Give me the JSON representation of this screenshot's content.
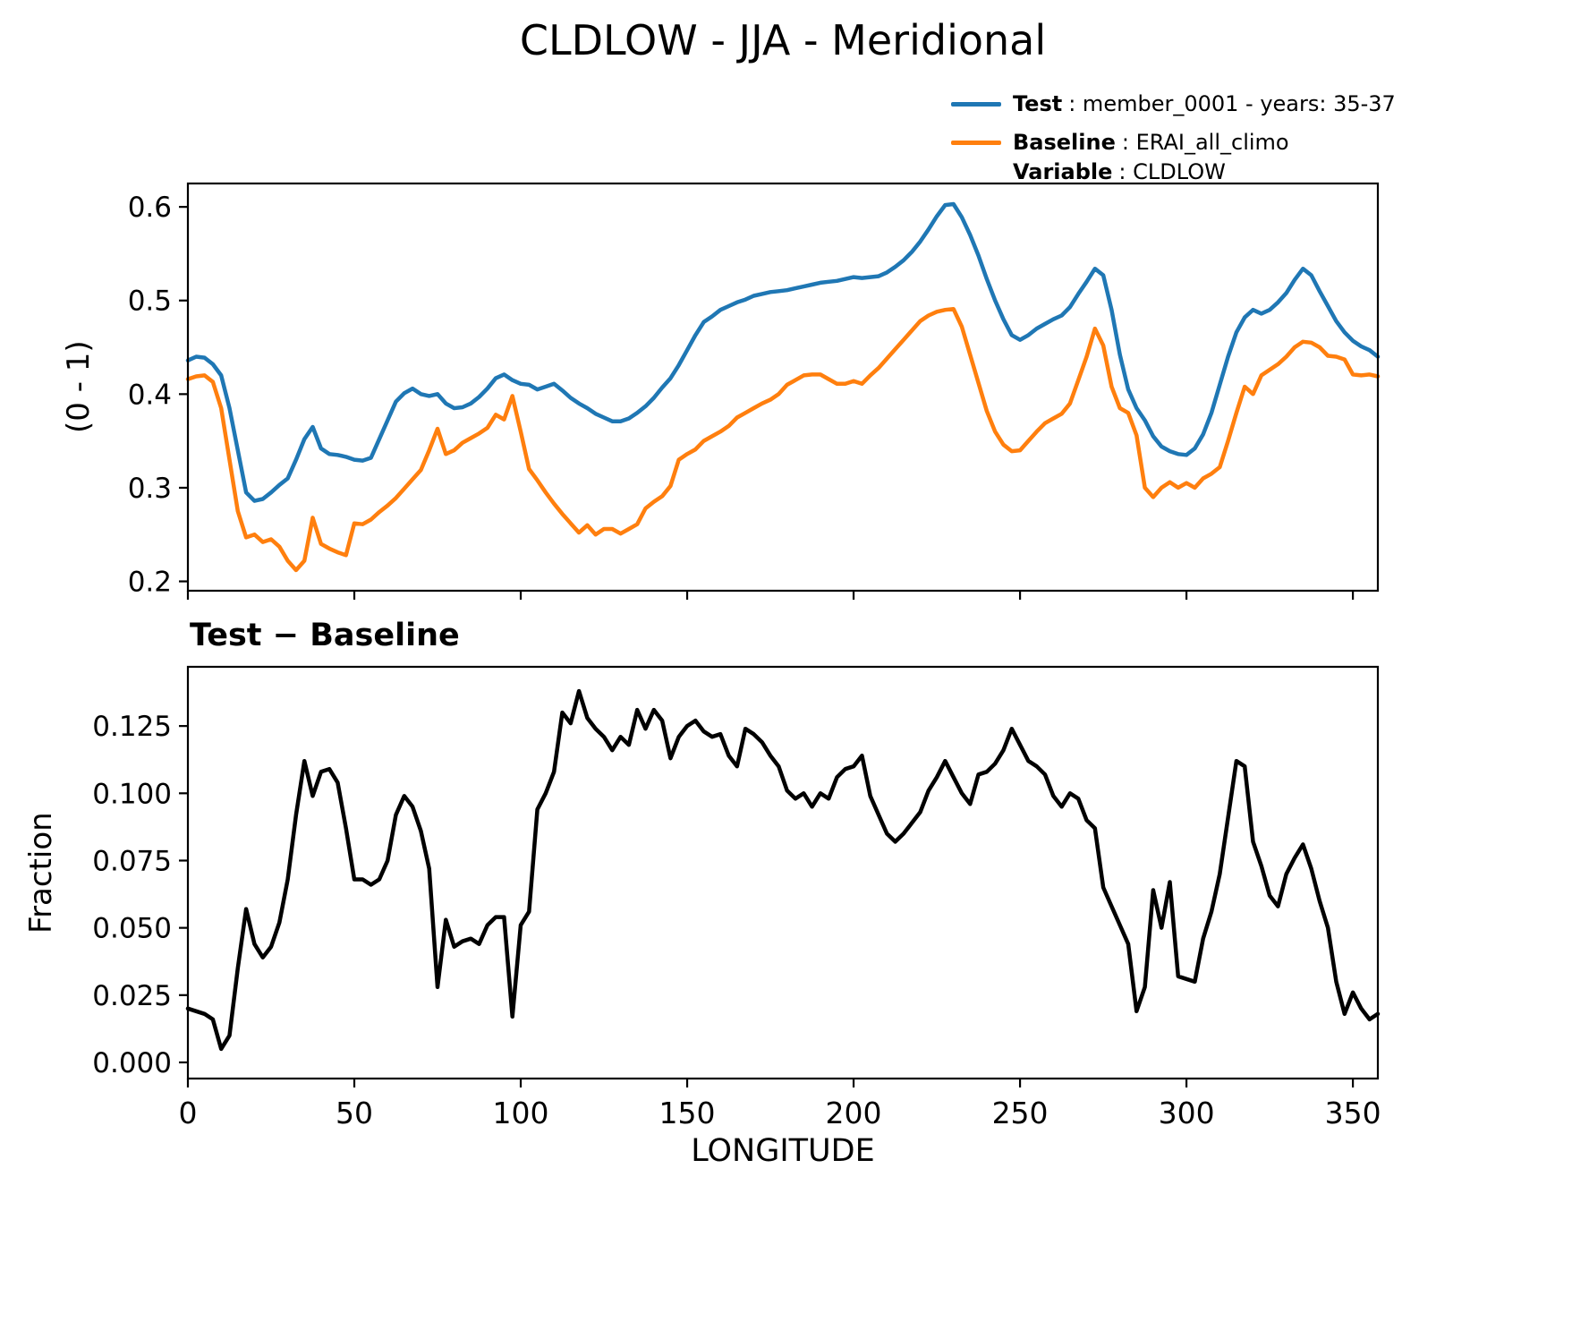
{
  "title": "CLDLOW - JJA - Meridional",
  "legend": {
    "test_label": "Test",
    "test_text": ": member_0001 - years: 35-37",
    "test_color": "#1f77b4",
    "baseline_label": "Baseline",
    "baseline_text": ": ERAI_all_climo",
    "baseline_color": "#ff7f0e",
    "variable_label": "Variable",
    "variable_text": ": CLDLOW"
  },
  "chart_data": [
    {
      "type": "line",
      "ylabel": "(0 - 1)",
      "xlim": [
        0,
        357.5
      ],
      "ylim": [
        0.19,
        0.625
      ],
      "yticks": [
        0.2,
        0.3,
        0.4,
        0.5,
        0.6
      ],
      "yticklabels": [
        "0.2",
        "0.3",
        "0.4",
        "0.5",
        "0.6"
      ],
      "xticks": [
        0,
        50,
        100,
        150,
        200,
        250,
        300,
        350
      ],
      "xticklabels": [
        "0",
        "50",
        "100",
        "150",
        "200",
        "250",
        "300",
        "350"
      ],
      "grid": false,
      "x": [
        0,
        2.5,
        5,
        7.5,
        10,
        12.5,
        15,
        17.5,
        20,
        22.5,
        25,
        27.5,
        30,
        32.5,
        35,
        37.5,
        40,
        42.5,
        45,
        47.5,
        50,
        52.5,
        55,
        57.5,
        60,
        62.5,
        65,
        67.5,
        70,
        72.5,
        75,
        77.5,
        80,
        82.5,
        85,
        87.5,
        90,
        92.5,
        95,
        97.5,
        100,
        102.5,
        105,
        107.5,
        110,
        112.5,
        115,
        117.5,
        120,
        122.5,
        125,
        127.5,
        130,
        132.5,
        135,
        137.5,
        140,
        142.5,
        145,
        147.5,
        150,
        152.5,
        155,
        157.5,
        160,
        162.5,
        165,
        167.5,
        170,
        172.5,
        175,
        177.5,
        180,
        182.5,
        185,
        187.5,
        190,
        192.5,
        195,
        197.5,
        200,
        202.5,
        205,
        207.5,
        210,
        212.5,
        215,
        217.5,
        220,
        222.5,
        225,
        227.5,
        230,
        232.5,
        235,
        237.5,
        240,
        242.5,
        245,
        247.5,
        250,
        252.5,
        255,
        257.5,
        260,
        262.5,
        265,
        267.5,
        270,
        272.5,
        275,
        277.5,
        280,
        282.5,
        285,
        287.5,
        290,
        292.5,
        295,
        297.5,
        300,
        302.5,
        305,
        307.5,
        310,
        312.5,
        315,
        317.5,
        320,
        322.5,
        325,
        327.5,
        330,
        332.5,
        335,
        337.5,
        340,
        342.5,
        345,
        347.5,
        350,
        352.5,
        355,
        357.5
      ],
      "series": [
        {
          "name": "Test",
          "color": "#1f77b4",
          "values": [
            0.436,
            0.44,
            0.439,
            0.432,
            0.42,
            0.385,
            0.34,
            0.295,
            0.286,
            0.288,
            0.295,
            0.303,
            0.31,
            0.33,
            0.352,
            0.365,
            0.342,
            0.336,
            0.335,
            0.333,
            0.33,
            0.329,
            0.332,
            0.352,
            0.372,
            0.392,
            0.401,
            0.406,
            0.4,
            0.398,
            0.4,
            0.39,
            0.385,
            0.386,
            0.39,
            0.397,
            0.406,
            0.417,
            0.421,
            0.415,
            0.411,
            0.41,
            0.405,
            0.408,
            0.411,
            0.404,
            0.396,
            0.39,
            0.385,
            0.379,
            0.375,
            0.371,
            0.371,
            0.374,
            0.38,
            0.387,
            0.396,
            0.407,
            0.417,
            0.431,
            0.447,
            0.463,
            0.477,
            0.483,
            0.49,
            0.494,
            0.498,
            0.501,
            0.505,
            0.507,
            0.509,
            0.51,
            0.511,
            0.513,
            0.515,
            0.517,
            0.519,
            0.52,
            0.521,
            0.523,
            0.525,
            0.524,
            0.525,
            0.526,
            0.53,
            0.536,
            0.543,
            0.552,
            0.563,
            0.576,
            0.59,
            0.602,
            0.603,
            0.589,
            0.57,
            0.548,
            0.523,
            0.5,
            0.48,
            0.463,
            0.458,
            0.463,
            0.47,
            0.475,
            0.48,
            0.484,
            0.493,
            0.507,
            0.52,
            0.534,
            0.527,
            0.49,
            0.442,
            0.405,
            0.385,
            0.372,
            0.355,
            0.344,
            0.339,
            0.336,
            0.335,
            0.342,
            0.357,
            0.38,
            0.41,
            0.44,
            0.466,
            0.482,
            0.49,
            0.486,
            0.49,
            0.498,
            0.508,
            0.522,
            0.534,
            0.527,
            0.51,
            0.494,
            0.478,
            0.466,
            0.457,
            0.451,
            0.447,
            0.44
          ]
        },
        {
          "name": "Baseline",
          "color": "#ff7f0e",
          "values": [
            0.416,
            0.419,
            0.42,
            0.413,
            0.385,
            0.33,
            0.275,
            0.247,
            0.25,
            0.242,
            0.245,
            0.237,
            0.222,
            0.212,
            0.222,
            0.268,
            0.24,
            0.235,
            0.231,
            0.228,
            0.262,
            0.261,
            0.266,
            0.274,
            0.281,
            0.289,
            0.299,
            0.309,
            0.319,
            0.34,
            0.363,
            0.336,
            0.34,
            0.348,
            0.353,
            0.358,
            0.364,
            0.378,
            0.373,
            0.398,
            0.36,
            0.32,
            0.308,
            0.295,
            0.283,
            0.272,
            0.262,
            0.252,
            0.26,
            0.25,
            0.256,
            0.256,
            0.251,
            0.256,
            0.261,
            0.278,
            0.285,
            0.291,
            0.302,
            0.33,
            0.336,
            0.341,
            0.35,
            0.355,
            0.36,
            0.366,
            0.375,
            0.38,
            0.385,
            0.39,
            0.394,
            0.4,
            0.41,
            0.415,
            0.42,
            0.421,
            0.421,
            0.416,
            0.411,
            0.411,
            0.414,
            0.411,
            0.42,
            0.428,
            0.438,
            0.448,
            0.458,
            0.468,
            0.478,
            0.484,
            0.488,
            0.49,
            0.491,
            0.472,
            0.442,
            0.412,
            0.382,
            0.36,
            0.346,
            0.339,
            0.34,
            0.35,
            0.36,
            0.369,
            0.374,
            0.379,
            0.39,
            0.415,
            0.44,
            0.47,
            0.452,
            0.408,
            0.385,
            0.38,
            0.356,
            0.3,
            0.29,
            0.3,
            0.306,
            0.3,
            0.305,
            0.3,
            0.31,
            0.315,
            0.322,
            0.35,
            0.38,
            0.408,
            0.4,
            0.42,
            0.426,
            0.432,
            0.44,
            0.45,
            0.456,
            0.455,
            0.45,
            0.441,
            0.44,
            0.437,
            0.421,
            0.42,
            0.421,
            0.419
          ]
        }
      ]
    },
    {
      "type": "line",
      "title": "Test − Baseline",
      "ylabel": "Fraction",
      "xlabel": "LONGITUDE",
      "xlim": [
        0,
        357.5
      ],
      "ylim": [
        -0.006,
        0.147
      ],
      "yticks": [
        0,
        0.025,
        0.05,
        0.075,
        0.1,
        0.125
      ],
      "yticklabels": [
        "0.000",
        "0.025",
        "0.050",
        "0.075",
        "0.100",
        "0.125"
      ],
      "xticks": [
        0,
        50,
        100,
        150,
        200,
        250,
        300,
        350
      ],
      "xticklabels": [
        "0",
        "50",
        "100",
        "150",
        "200",
        "250",
        "300",
        "350"
      ],
      "grid": false,
      "x": [
        0,
        2.5,
        5,
        7.5,
        10,
        12.5,
        15,
        17.5,
        20,
        22.5,
        25,
        27.5,
        30,
        32.5,
        35,
        37.5,
        40,
        42.5,
        45,
        47.5,
        50,
        52.5,
        55,
        57.5,
        60,
        62.5,
        65,
        67.5,
        70,
        72.5,
        75,
        77.5,
        80,
        82.5,
        85,
        87.5,
        90,
        92.5,
        95,
        97.5,
        100,
        102.5,
        105,
        107.5,
        110,
        112.5,
        115,
        117.5,
        120,
        122.5,
        125,
        127.5,
        130,
        132.5,
        135,
        137.5,
        140,
        142.5,
        145,
        147.5,
        150,
        152.5,
        155,
        157.5,
        160,
        162.5,
        165,
        167.5,
        170,
        172.5,
        175,
        177.5,
        180,
        182.5,
        185,
        187.5,
        190,
        192.5,
        195,
        197.5,
        200,
        202.5,
        205,
        207.5,
        210,
        212.5,
        215,
        217.5,
        220,
        222.5,
        225,
        227.5,
        230,
        232.5,
        235,
        237.5,
        240,
        242.5,
        245,
        247.5,
        250,
        252.5,
        255,
        257.5,
        260,
        262.5,
        265,
        267.5,
        270,
        272.5,
        275,
        277.5,
        280,
        282.5,
        285,
        287.5,
        290,
        292.5,
        295,
        297.5,
        300,
        302.5,
        305,
        307.5,
        310,
        312.5,
        315,
        317.5,
        320,
        322.5,
        325,
        327.5,
        330,
        332.5,
        335,
        337.5,
        340,
        342.5,
        345,
        347.5,
        350,
        352.5,
        355,
        357.5
      ],
      "series": [
        {
          "name": "Test - Baseline",
          "color": "#000000",
          "values": [
            0.02,
            0.019,
            0.018,
            0.016,
            0.005,
            0.01,
            0.035,
            0.057,
            0.044,
            0.039,
            0.043,
            0.052,
            0.068,
            0.092,
            0.112,
            0.099,
            0.108,
            0.109,
            0.104,
            0.087,
            0.068,
            0.068,
            0.066,
            0.068,
            0.075,
            0.092,
            0.099,
            0.095,
            0.086,
            0.072,
            0.028,
            0.053,
            0.043,
            0.045,
            0.046,
            0.044,
            0.051,
            0.054,
            0.054,
            0.017,
            0.051,
            0.056,
            0.094,
            0.1,
            0.108,
            0.13,
            0.126,
            0.138,
            0.128,
            0.124,
            0.121,
            0.116,
            0.121,
            0.118,
            0.131,
            0.124,
            0.131,
            0.127,
            0.113,
            0.121,
            0.125,
            0.127,
            0.123,
            0.121,
            0.122,
            0.114,
            0.11,
            0.124,
            0.122,
            0.119,
            0.114,
            0.11,
            0.101,
            0.098,
            0.1,
            0.095,
            0.1,
            0.098,
            0.106,
            0.109,
            0.11,
            0.114,
            0.099,
            0.092,
            0.085,
            0.082,
            0.085,
            0.089,
            0.093,
            0.101,
            0.106,
            0.112,
            0.106,
            0.1,
            0.096,
            0.107,
            0.108,
            0.111,
            0.116,
            0.124,
            0.118,
            0.112,
            0.11,
            0.107,
            0.099,
            0.095,
            0.1,
            0.098,
            0.09,
            0.087,
            0.065,
            0.058,
            0.051,
            0.044,
            0.019,
            0.028,
            0.064,
            0.05,
            0.067,
            0.032,
            0.031,
            0.03,
            0.046,
            0.056,
            0.07,
            0.091,
            0.112,
            0.11,
            0.082,
            0.073,
            0.062,
            0.058,
            0.07,
            0.076,
            0.081,
            0.072,
            0.06,
            0.05,
            0.03,
            0.018,
            0.026,
            0.02,
            0.016,
            0.018
          ]
        }
      ]
    }
  ]
}
